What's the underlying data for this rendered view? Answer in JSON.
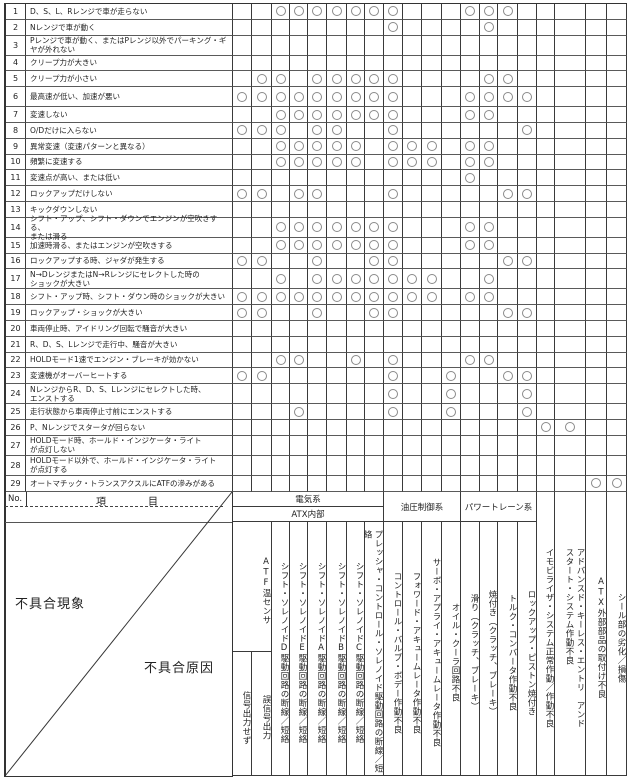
{
  "rows": [
    {
      "no": "1",
      "text": "D、S、L、Rレンジで車が走らない",
      "marks": [
        3,
        4,
        5,
        6,
        7,
        8,
        9,
        13,
        14,
        15
      ]
    },
    {
      "no": "2",
      "text": "Nレンジで車が動く",
      "marks": [
        9,
        14
      ]
    },
    {
      "no": "3",
      "text": "Pレンジで車が動く、またはPレンジ以外でパーキング・ギ\nヤが外れない",
      "marks": []
    },
    {
      "no": "4",
      "text": "クリープ力が大きい",
      "marks": []
    },
    {
      "no": "5",
      "text": "クリープ力が小さい",
      "marks": [
        2,
        3,
        5,
        6,
        7,
        8,
        9,
        14,
        15
      ]
    },
    {
      "no": "6",
      "text": "最高速が低い、加速が悪い",
      "marks": [
        1,
        2,
        3,
        4,
        5,
        6,
        7,
        8,
        9,
        13,
        14,
        15,
        16
      ]
    },
    {
      "no": "7",
      "text": "変速しない",
      "marks": [
        3,
        4,
        5,
        6,
        7,
        8,
        9,
        13,
        14
      ]
    },
    {
      "no": "8",
      "text": "O/Dだけに入らない",
      "marks": [
        1,
        2,
        3,
        5,
        6,
        9,
        16
      ]
    },
    {
      "no": "9",
      "text": "異常変速（変速パターンと異なる）",
      "marks": [
        3,
        4,
        5,
        6,
        7,
        9,
        10,
        11,
        13,
        14
      ]
    },
    {
      "no": "10",
      "text": "頻繁に変速する",
      "marks": [
        3,
        4,
        5,
        6,
        7,
        9,
        10,
        11,
        13,
        14
      ]
    },
    {
      "no": "11",
      "text": "変速点が高い、または低い",
      "marks": [
        13
      ]
    },
    {
      "no": "12",
      "text": "ロックアップだけしない",
      "marks": [
        1,
        2,
        4,
        5,
        9,
        15,
        16
      ]
    },
    {
      "no": "13",
      "text": "キックダウンしない",
      "marks": []
    },
    {
      "no": "14",
      "text": "シフト・アップ、シフト・ダウンでエンジンが空吹きする、\nまたは滑る",
      "marks": [
        3,
        4,
        5,
        6,
        7,
        8,
        9,
        13,
        14
      ]
    },
    {
      "no": "15",
      "text": "加速時滑る、またはエンジンが空吹きする",
      "marks": [
        3,
        4,
        5,
        6,
        7,
        8,
        9,
        13,
        14
      ]
    },
    {
      "no": "16",
      "text": "ロックアップする時、ジャダが発生する",
      "marks": [
        1,
        2,
        5,
        8,
        9,
        15,
        16
      ]
    },
    {
      "no": "17",
      "text": "N→DレンジまたはN→Rレンジにセレクトした時の\nショックが大きい",
      "marks": [
        3,
        5,
        6,
        7,
        8,
        9,
        10,
        11,
        14
      ]
    },
    {
      "no": "18",
      "text": "シフト・アップ時、シフト・ダウン時のショックが大きい",
      "marks": [
        1,
        2,
        3,
        4,
        5,
        6,
        7,
        8,
        9,
        10,
        11,
        13,
        14
      ]
    },
    {
      "no": "19",
      "text": "ロックアップ・ショックが大きい",
      "marks": [
        1,
        2,
        5,
        8,
        9,
        15,
        16
      ]
    },
    {
      "no": "20",
      "text": "車両停止時、アイドリング回転で騒音が大きい",
      "marks": []
    },
    {
      "no": "21",
      "text": "R、D、S、Lレンジで走行中、騒音が大きい",
      "marks": []
    },
    {
      "no": "22",
      "text": "HOLDモード1速でエンジン・ブレーキが効かない",
      "marks": [
        3,
        4,
        7,
        9,
        13,
        14
      ]
    },
    {
      "no": "23",
      "text": "変速機がオーバーヒートする",
      "marks": [
        1,
        2,
        9,
        12,
        15,
        16
      ]
    },
    {
      "no": "24",
      "text": "NレンジからR、D、S、Lレンジにセレクトした時、\nエンストする",
      "marks": [
        9,
        12,
        16
      ]
    },
    {
      "no": "25",
      "text": "走行状態から車両停止寸前にエンストする",
      "marks": [
        4,
        9,
        12,
        16
      ]
    },
    {
      "no": "26",
      "text": "P、Nレンジでスタータが回らない",
      "marks": [
        17,
        18
      ]
    },
    {
      "no": "27",
      "text": "HOLDモード時、ホールド・インジケータ・ライト\nが点灯しない",
      "marks": []
    },
    {
      "no": "28",
      "text": "HOLDモード以外で、ホールド・インジケータ・ライト\nが点灯する",
      "marks": []
    },
    {
      "no": "29",
      "text": "オートマチック・トランスアクスルにATFの滲みがある",
      "marks": [
        19,
        20
      ]
    }
  ],
  "header": {
    "no": "No.",
    "item_a": "項",
    "item_b": "目",
    "symptom": "不具合現象",
    "cause": "不具合原因",
    "electrical": "電気系",
    "atx_internal": "ATX内部",
    "hydraulic": "油圧制御系",
    "powertrain": "パワートレーン系",
    "atf_sensor": "ATF温センサ",
    "atf_sub": [
      "信号出力せず",
      "誤信号出力"
    ],
    "columns": [
      "シフト・ソレノイドD駆動回路の断線／短絡",
      "シフト・ソレノイドE駆動回路の断線／短絡",
      "シフト・ソレノイドA駆動回路の断線／短絡",
      "シフト・ソレノイドB駆動回路の断線／短絡",
      "シフト・ソレノイドC駆動回路の断線／短絡",
      "プレッシャ・コントロール・ソレノイド駆動回路の断線／短絡",
      "コントロール・バルブ・ボデー作動不良",
      "フォワード・アキュームレータ作動不良",
      "サーボ・アプライ・アキュームレータ作動不良",
      "オイル・クーラ回路不良",
      "滑り（クラッチ、ブレーキ）",
      "焼付き（クラッチ、ブレーキ）",
      "トルク・コンバータ作動不良",
      "ロックアップ・ピストン焼付き",
      "イモビライザ・システム正常作動／作動不良",
      "アドバンスド・キーレス・エントリ　アンド\nスタート・システム作動不良",
      "ATX外部部品の取付け不良",
      "シール部の劣化／損傷"
    ]
  },
  "colors": {
    "line": "#3a3a3a",
    "mark": "#8a8a8a"
  }
}
